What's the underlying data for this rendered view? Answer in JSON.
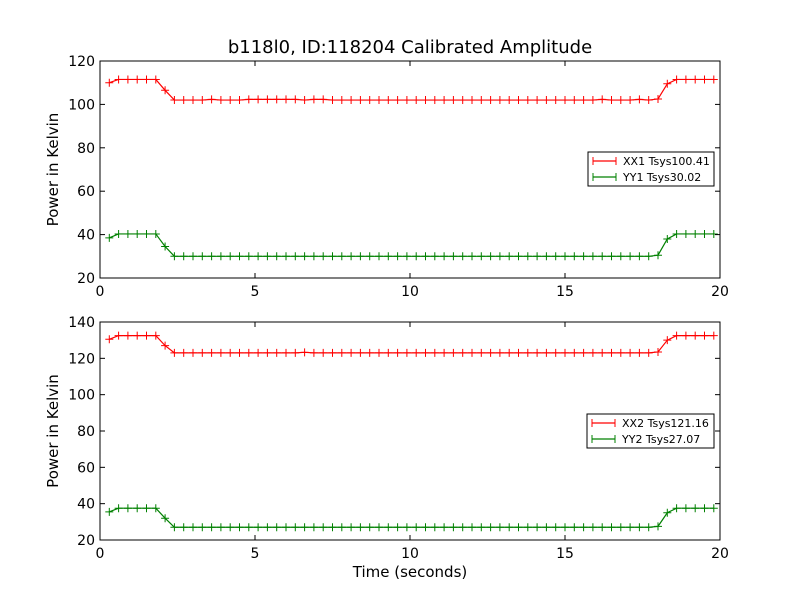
{
  "figure": {
    "title": "b118l0, ID:118204 Calibrated Amplitude"
  },
  "chart_data": [
    {
      "type": "line",
      "ylabel": "Power in Kelvin",
      "xlabel": "",
      "xlim": [
        0,
        20
      ],
      "ylim": [
        20,
        120
      ],
      "xticks": [
        "0",
        "5",
        "10",
        "15",
        "20"
      ],
      "yticks": [
        "20",
        "40",
        "60",
        "80",
        "100",
        "120"
      ],
      "legend": "center-right",
      "series": [
        {
          "name": "XX1 Tsys100.41",
          "color": "#ff0000",
          "marker": "plus",
          "x": [
            0.3,
            0.6,
            0.9,
            1.2,
            1.5,
            1.8,
            2.1,
            2.4,
            2.7,
            3.0,
            3.3,
            3.6,
            3.9,
            4.2,
            4.5,
            4.8,
            5.1,
            5.4,
            5.7,
            6.0,
            6.3,
            6.6,
            6.9,
            7.2,
            7.5,
            7.8,
            8.1,
            8.4,
            8.7,
            9.0,
            9.3,
            9.6,
            9.9,
            10.2,
            10.5,
            10.8,
            11.1,
            11.4,
            11.7,
            12.0,
            12.3,
            12.6,
            12.9,
            13.2,
            13.5,
            13.8,
            14.1,
            14.4,
            14.7,
            15.0,
            15.3,
            15.6,
            15.9,
            16.2,
            16.5,
            16.8,
            17.1,
            17.4,
            17.7,
            18.0,
            18.3,
            18.6,
            18.9,
            19.2,
            19.5,
            19.8
          ],
          "y": [
            110,
            111.5,
            111.5,
            111.5,
            111.5,
            111.5,
            106.5,
            102,
            102,
            102,
            102,
            102.3,
            102,
            102,
            102,
            102.3,
            102.3,
            102.3,
            102.3,
            102.3,
            102.3,
            102,
            102.3,
            102.3,
            102,
            102,
            102,
            102,
            102,
            102,
            102,
            102,
            102,
            102,
            102,
            102,
            102,
            102,
            102,
            102,
            102,
            102,
            102,
            102,
            102,
            102,
            102,
            102,
            102,
            102,
            102,
            102,
            102,
            102.3,
            102,
            102,
            102,
            102.3,
            102,
            102.5,
            109.5,
            111.5,
            111.5,
            111.5,
            111.5,
            111.5
          ]
        },
        {
          "name": "YY1 Tsys30.02",
          "color": "#008000",
          "marker": "plus",
          "x": [
            0.3,
            0.6,
            0.9,
            1.2,
            1.5,
            1.8,
            2.1,
            2.4,
            2.7,
            3.0,
            3.3,
            3.6,
            3.9,
            4.2,
            4.5,
            4.8,
            5.1,
            5.4,
            5.7,
            6.0,
            6.3,
            6.6,
            6.9,
            7.2,
            7.5,
            7.8,
            8.1,
            8.4,
            8.7,
            9.0,
            9.3,
            9.6,
            9.9,
            10.2,
            10.5,
            10.8,
            11.1,
            11.4,
            11.7,
            12.0,
            12.3,
            12.6,
            12.9,
            13.2,
            13.5,
            13.8,
            14.1,
            14.4,
            14.7,
            15.0,
            15.3,
            15.6,
            15.9,
            16.2,
            16.5,
            16.8,
            17.1,
            17.4,
            17.7,
            18.0,
            18.3,
            18.6,
            18.9,
            19.2,
            19.5,
            19.8
          ],
          "y": [
            38.5,
            40.3,
            40.3,
            40.3,
            40.3,
            40.3,
            34.5,
            30,
            30,
            30,
            30,
            30,
            30,
            30,
            30,
            30,
            30,
            30,
            30,
            30,
            30,
            30,
            30,
            30,
            30,
            30,
            30,
            30,
            30,
            30,
            30,
            30,
            30,
            30,
            30,
            30,
            30,
            30,
            30,
            30,
            30,
            30,
            30,
            30,
            30,
            30,
            30,
            30,
            30,
            30,
            30,
            30,
            30,
            30,
            30,
            30,
            30,
            30,
            30,
            30.5,
            38,
            40.3,
            40.3,
            40.3,
            40.3,
            40.3
          ]
        }
      ]
    },
    {
      "type": "line",
      "ylabel": "Power in Kelvin",
      "xlabel": "Time (seconds)",
      "xlim": [
        0,
        20
      ],
      "ylim": [
        20,
        140
      ],
      "xticks": [
        "0",
        "5",
        "10",
        "15",
        "20"
      ],
      "yticks": [
        "20",
        "40",
        "60",
        "80",
        "100",
        "120",
        "140"
      ],
      "legend": "center-right",
      "series": [
        {
          "name": "XX2 Tsys121.16",
          "color": "#ff0000",
          "marker": "plus",
          "x": [
            0.3,
            0.6,
            0.9,
            1.2,
            1.5,
            1.8,
            2.1,
            2.4,
            2.7,
            3.0,
            3.3,
            3.6,
            3.9,
            4.2,
            4.5,
            4.8,
            5.1,
            5.4,
            5.7,
            6.0,
            6.3,
            6.6,
            6.9,
            7.2,
            7.5,
            7.8,
            8.1,
            8.4,
            8.7,
            9.0,
            9.3,
            9.6,
            9.9,
            10.2,
            10.5,
            10.8,
            11.1,
            11.4,
            11.7,
            12.0,
            12.3,
            12.6,
            12.9,
            13.2,
            13.5,
            13.8,
            14.1,
            14.4,
            14.7,
            15.0,
            15.3,
            15.6,
            15.9,
            16.2,
            16.5,
            16.8,
            17.1,
            17.4,
            17.7,
            18.0,
            18.3,
            18.6,
            18.9,
            19.2,
            19.5,
            19.8
          ],
          "y": [
            130.5,
            132.5,
            132.5,
            132.5,
            132.5,
            132.5,
            127,
            123,
            123,
            123,
            123,
            123,
            123,
            123,
            123,
            123,
            123,
            123,
            123,
            123,
            123,
            123.3,
            123,
            123,
            123,
            123,
            123,
            123,
            123,
            123,
            123,
            123,
            123,
            123,
            123,
            123,
            123,
            123,
            123,
            123,
            123,
            123,
            123,
            123,
            123,
            123,
            123,
            123,
            123,
            123,
            123,
            123,
            123,
            123,
            123,
            123,
            123,
            123,
            123,
            123.5,
            130,
            132.5,
            132.5,
            132.5,
            132.5,
            132.5
          ]
        },
        {
          "name": "YY2 Tsys27.07",
          "color": "#008000",
          "marker": "plus",
          "x": [
            0.3,
            0.6,
            0.9,
            1.2,
            1.5,
            1.8,
            2.1,
            2.4,
            2.7,
            3.0,
            3.3,
            3.6,
            3.9,
            4.2,
            4.5,
            4.8,
            5.1,
            5.4,
            5.7,
            6.0,
            6.3,
            6.6,
            6.9,
            7.2,
            7.5,
            7.8,
            8.1,
            8.4,
            8.7,
            9.0,
            9.3,
            9.6,
            9.9,
            10.2,
            10.5,
            10.8,
            11.1,
            11.4,
            11.7,
            12.0,
            12.3,
            12.6,
            12.9,
            13.2,
            13.5,
            13.8,
            14.1,
            14.4,
            14.7,
            15.0,
            15.3,
            15.6,
            15.9,
            16.2,
            16.5,
            16.8,
            17.1,
            17.4,
            17.7,
            18.0,
            18.3,
            18.6,
            18.9,
            19.2,
            19.5,
            19.8
          ],
          "y": [
            35.5,
            37.5,
            37.5,
            37.5,
            37.5,
            37.5,
            32,
            27,
            27,
            27,
            27,
            27,
            27,
            27,
            27,
            27,
            27,
            27,
            27,
            27,
            27,
            27,
            27,
            27,
            27,
            27,
            27,
            27,
            27,
            27,
            27,
            27,
            27,
            27,
            27,
            27,
            27,
            27,
            27,
            27,
            27,
            27,
            27,
            27,
            27,
            27,
            27,
            27,
            27,
            27,
            27,
            27,
            27,
            27,
            27,
            27,
            27,
            27,
            27,
            27.5,
            35,
            37.5,
            37.5,
            37.5,
            37.5,
            37.5
          ]
        }
      ]
    }
  ]
}
